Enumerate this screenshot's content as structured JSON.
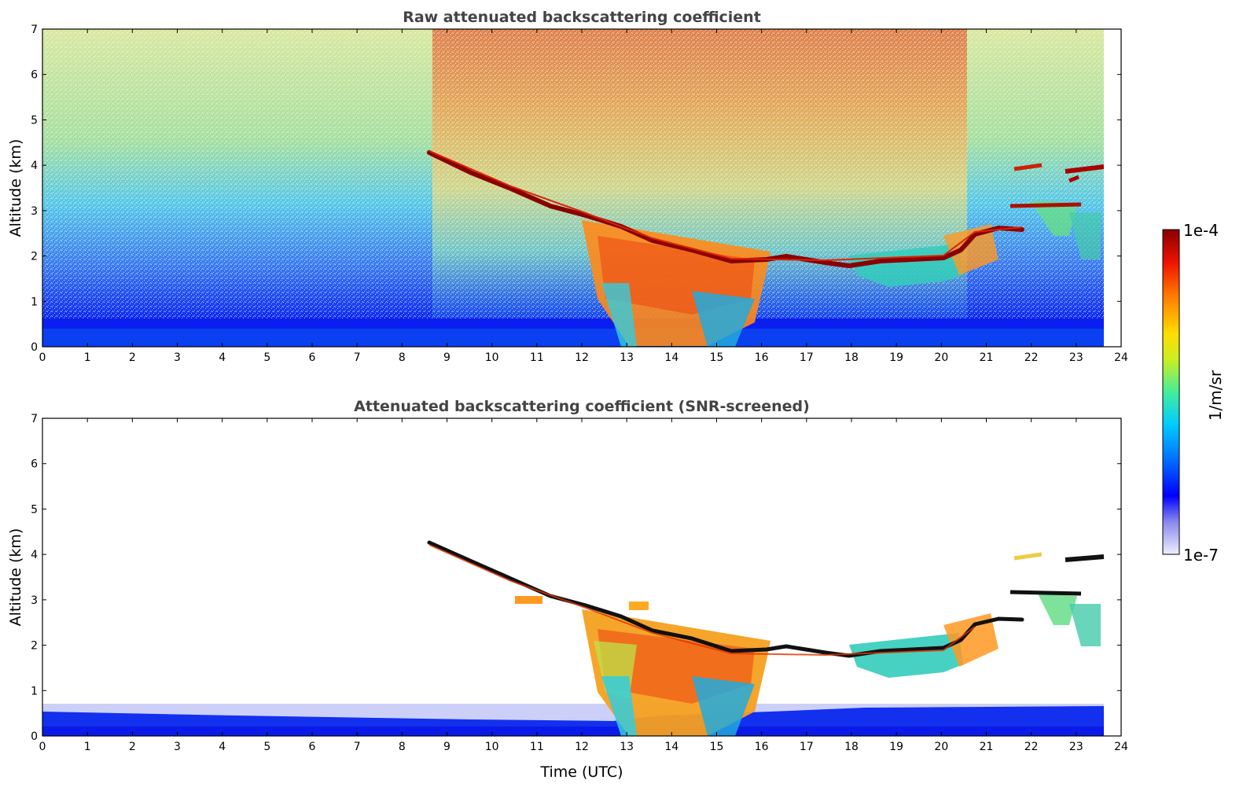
{
  "chart_data": [
    {
      "type": "heatmap",
      "title": "Raw attenuated backscattering coefficient",
      "xlabel": "",
      "ylabel": "Altitude (km)",
      "xlim": [
        0,
        24
      ],
      "ylim": [
        0,
        7
      ],
      "xticks": [
        "0",
        "1",
        "2",
        "3",
        "4",
        "5",
        "6",
        "7",
        "8",
        "9",
        "10",
        "11",
        "12",
        "13",
        "14",
        "15",
        "16",
        "17",
        "18",
        "19",
        "20",
        "21",
        "22",
        "23",
        "24"
      ],
      "yticks": [
        "0",
        "1",
        "2",
        "3",
        "4",
        "5",
        "6",
        "7"
      ],
      "data_end_time": 23.6,
      "features": {
        "cloud_layer_base_km": [
          {
            "t": 8.6,
            "alt": 4.25
          },
          {
            "t": 10.5,
            "alt": 3.4
          },
          {
            "t": 12.0,
            "alt": 2.9
          },
          {
            "t": 13.5,
            "alt": 2.4
          },
          {
            "t": 15.0,
            "alt": 1.9
          },
          {
            "t": 16.0,
            "alt": 1.95
          },
          {
            "t": 17.5,
            "alt": 1.8
          },
          {
            "t": 19.0,
            "alt": 1.9
          },
          {
            "t": 20.5,
            "alt": 2.1
          },
          {
            "t": 21.0,
            "alt": 2.6
          }
        ],
        "upper_layer_km": [
          {
            "t": 21.7,
            "alt": 3.9
          },
          {
            "t": 22.5,
            "alt": 3.2
          },
          {
            "t": 23.0,
            "alt": 3.8
          },
          {
            "t": 23.6,
            "alt": 3.9
          }
        ],
        "boundary_layer_top_km": 0.5
      }
    },
    {
      "type": "heatmap",
      "title": "Attenuated backscattering coefficient (SNR-screened)",
      "xlabel": "Time (UTC)",
      "ylabel": "Altitude (km)",
      "xlim": [
        0,
        24
      ],
      "ylim": [
        0,
        7
      ],
      "xticks": [
        "0",
        "1",
        "2",
        "3",
        "4",
        "5",
        "6",
        "7",
        "8",
        "9",
        "10",
        "11",
        "12",
        "13",
        "14",
        "15",
        "16",
        "17",
        "18",
        "19",
        "20",
        "21",
        "22",
        "23",
        "24"
      ],
      "yticks": [
        "0",
        "1",
        "2",
        "3",
        "4",
        "5",
        "6",
        "7"
      ],
      "data_end_time": 23.6
    }
  ],
  "colorbar": {
    "label": "1/m/sr",
    "min_label": "1e-7",
    "max_label": "1e-4",
    "scale": "log",
    "colors": [
      "#eeeeff",
      "#8888ee",
      "#0000ff",
      "#0077ff",
      "#00ccff",
      "#44ee99",
      "#ccee22",
      "#ffdd00",
      "#ff7700",
      "#ee1100",
      "#880000"
    ]
  }
}
